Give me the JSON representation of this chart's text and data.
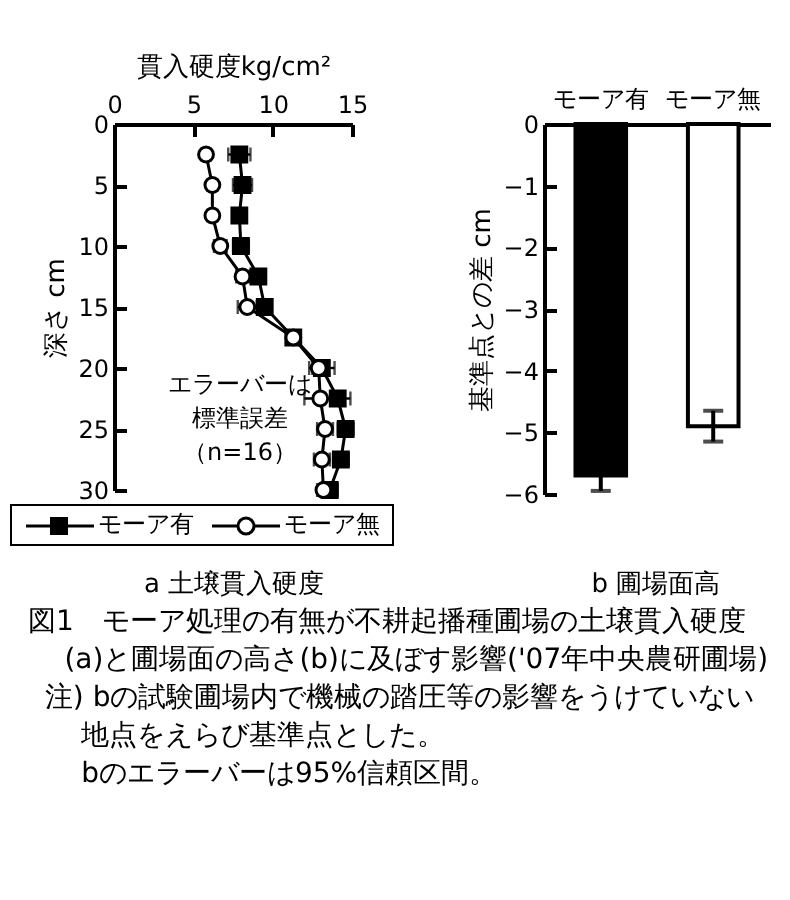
{
  "chart_data": [
    {
      "type": "line",
      "title": "a 土壌貫入硬度",
      "xlabel": "貫入硬度kg/cm²",
      "ylabel": "深さ cm",
      "xlim": [
        0,
        15
      ],
      "xticks": [
        0,
        5,
        10,
        15
      ],
      "ylim": [
        30,
        0
      ],
      "yticks": [
        0,
        5,
        10,
        15,
        20,
        25,
        30
      ],
      "legend": "bottom",
      "annotations": [
        "エラーバーは標準誤差（n=16）"
      ],
      "series": [
        {
          "name": "モーア有",
          "color": "#000000",
          "marker": "square",
          "x": [
            7.9,
            8.1,
            7.9,
            8.0,
            9.1,
            9.5,
            11.3,
            13.1,
            14.1,
            14.6,
            14.3,
            13.6
          ],
          "values": [
            2.5,
            5,
            7.5,
            10,
            12.5,
            15,
            17.5,
            20,
            22.5,
            25,
            27.5,
            30
          ],
          "xerrors": [
            0.7,
            0.6,
            0.4,
            0.5,
            0.4,
            0.4,
            null,
            0.8,
            0.8,
            0.5,
            0.5,
            0.5
          ]
        },
        {
          "name": "モーア無",
          "color": "#000000",
          "marker": "circle",
          "x": [
            5.8,
            6.2,
            6.2,
            6.7,
            8.1,
            8.4,
            11.3,
            12.9,
            13.0,
            13.3,
            13.1,
            13.2
          ],
          "values": [
            2.5,
            5,
            7.5,
            10,
            12.5,
            15,
            17.5,
            20,
            22.5,
            25,
            27.5,
            30
          ],
          "xerrors": [
            0.3,
            0.3,
            0.3,
            0.4,
            0.4,
            0.6,
            null,
            0.4,
            1.0,
            0.5,
            0.5,
            0.4
          ]
        }
      ]
    },
    {
      "type": "bar",
      "title": "b 圃場面高",
      "ylabel": "基準点との差 cm",
      "categories": [
        "モーア有",
        "モーア無"
      ],
      "values": [
        -5.7,
        -4.9
      ],
      "colors": [
        "#000000",
        "#ffffff"
      ],
      "errors": [
        0.25,
        0.25
      ],
      "ylim": [
        -6,
        0
      ],
      "yticks": [
        0,
        -1,
        -2,
        -3,
        -4,
        -5,
        -6
      ],
      "annotations": [
        "図1　モーア処理の有無が不耕起播種圃場の土壌貫入硬度(a)と圃場面の高さ(b)に及ぼす影響('07年中央農研圃場)",
        "注) bの試験圃場内で機械の踏圧等の影響をうけていない地点をえらび基準点とした。",
        "bのエラーバーは95%信頼区間。"
      ]
    }
  ]
}
